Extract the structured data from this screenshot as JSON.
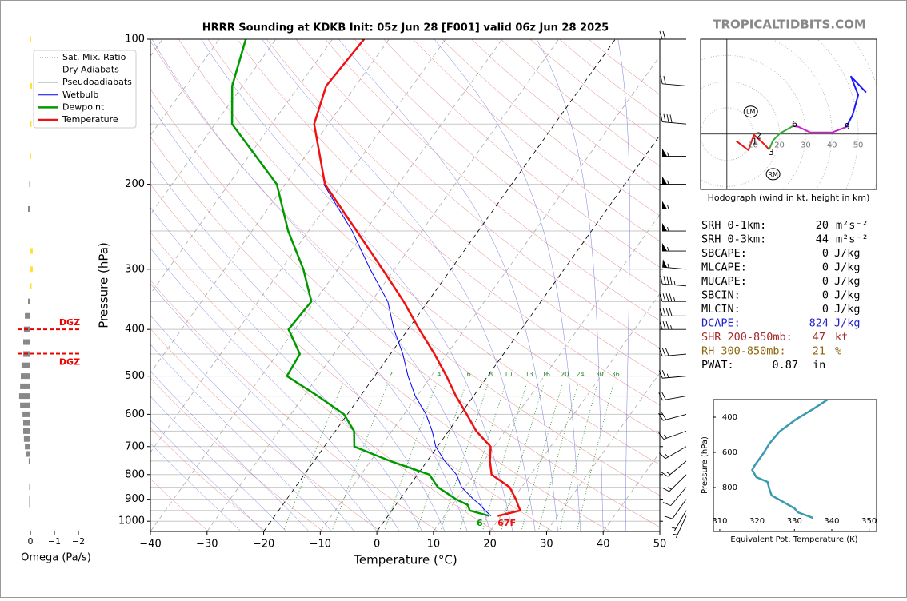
{
  "brand": "TROPICALTIDBITS.COM",
  "chart_data": [
    {
      "type": "skewt",
      "title": "HRRR Sounding at KDKB Init: 05z Jun 28 [F001] valid 06z Jun 28 2025",
      "x_label": "Temperature (°C)",
      "y_label": "Pressure (hPa)",
      "xlim": [
        -40,
        50
      ],
      "ylim": [
        1050,
        100
      ],
      "log_y": true,
      "xticks": [
        {
          "value": -40,
          "label": "−40"
        },
        {
          "value": -30,
          "label": "−30"
        },
        {
          "value": -20,
          "label": "−20"
        },
        {
          "value": -10,
          "label": "−10"
        },
        0,
        10,
        20,
        30,
        40,
        50
      ],
      "yticks": [
        100,
        200,
        300,
        400,
        500,
        600,
        700,
        800,
        900,
        1000
      ],
      "minor_yticks": [
        150,
        250,
        350,
        450,
        550,
        650,
        750,
        850,
        950,
        1050
      ],
      "highlight_isotherms": [
        -20,
        0
      ],
      "mixing_ratio_labels": [
        1,
        2,
        4,
        6,
        8,
        10,
        13,
        16,
        20,
        24,
        30,
        36
      ],
      "background_lines": [
        {
          "name": "Sat. Mix. Ratio",
          "color": "#2e8b2e",
          "style": "dotted"
        },
        {
          "name": "Dry Adiabats",
          "color": "#aaaaaa",
          "style": "solid"
        },
        {
          "name": "Pseudoadiabats",
          "color": "#aaaaaa",
          "style": "solid"
        }
      ],
      "pressure": [
        975,
        950,
        925,
        900,
        850,
        800,
        750,
        700,
        650,
        600,
        550,
        500,
        450,
        400,
        350,
        300,
        250,
        200,
        150,
        125,
        100
      ],
      "series": [
        {
          "name": "Wetbulb",
          "color": "#0000ff",
          "width": 1,
          "values": [
            18.2,
            16.5,
            14.9,
            13,
            9.4,
            6.9,
            3.1,
            -0.3,
            -2.9,
            -6.1,
            -10.3,
            -14.1,
            -17.8,
            -22.5,
            -27.1,
            -34.3,
            -42.3,
            -53.2,
            null,
            null,
            null
          ]
        },
        {
          "name": "Dewpoint",
          "color": "#009900",
          "width": 2.5,
          "values": [
            17.9,
            13.8,
            12.7,
            9.9,
            5.2,
            2.1,
            -6.5,
            -14.7,
            -16.7,
            -20.6,
            -27.5,
            -35.5,
            -36,
            -41.1,
            -40.6,
            -46.1,
            -53.6,
            -61.5,
            -77,
            -81.8,
            -85.3
          ]
        },
        {
          "name": "Temperature",
          "color": "#ee1111",
          "width": 2.5,
          "values": [
            19.4,
            22.7,
            21.6,
            20.5,
            17.9,
            13.1,
            11.1,
            9.4,
            4.9,
            1.1,
            -3.1,
            -7.3,
            -12.2,
            -18,
            -24.3,
            -32.1,
            -41.5,
            -53,
            -62.5,
            -65.2,
            -64.4
          ]
        }
      ],
      "surface_labels": [
        {
          "text": "6",
          "color": "#009900"
        },
        {
          "text": "67F",
          "color": "#ee1111"
        }
      ],
      "wind": {
        "pressure": [
          100,
          125,
          150,
          175,
          200,
          225,
          250,
          275,
          300,
          325,
          350,
          375,
          400,
          450,
          500,
          550,
          600,
          650,
          700,
          750,
          800,
          850,
          900,
          950,
          975
        ],
        "speed": [
          20,
          20,
          40,
          55,
          55,
          55,
          55,
          55,
          55,
          45,
          45,
          40,
          35,
          30,
          25,
          20,
          20,
          15,
          15,
          15,
          15,
          10,
          10,
          5,
          5
        ],
        "direction": [
          270,
          275,
          275,
          270,
          270,
          270,
          270,
          270,
          275,
          275,
          270,
          270,
          270,
          265,
          265,
          260,
          255,
          250,
          240,
          230,
          225,
          220,
          215,
          210,
          205
        ]
      }
    },
    {
      "type": "omega",
      "x_label": "Omega (Pa/s)",
      "xlim": [
        0.5,
        -2
      ],
      "ylim": [
        1050,
        100
      ],
      "xticks": [
        0,
        {
          "value": -1,
          "label": "−1"
        },
        {
          "value": -2,
          "label": "−2"
        }
      ],
      "pressure": [
        100,
        125,
        150,
        175,
        200,
        225,
        275,
        300,
        325,
        350,
        375,
        400,
        425,
        450,
        475,
        500,
        525,
        550,
        575,
        600,
        625,
        650,
        675,
        700,
        725,
        750,
        850,
        900,
        925
      ],
      "values": [
        -0.03,
        -0.07,
        -0.05,
        -0.03,
        0.05,
        0.1,
        -0.1,
        -0.1,
        -0.05,
        0.1,
        0.23,
        0.27,
        0.3,
        0.3,
        0.37,
        0.4,
        0.43,
        0.47,
        0.43,
        0.33,
        0.3,
        0.3,
        0.27,
        0.23,
        0.17,
        0.07,
        0.05,
        0.05,
        0.05
      ],
      "colors": [
        "#ffe033",
        "#ffe033",
        "#ffe033",
        "#ffe033",
        "#888888",
        "#888888",
        "#ffe033",
        "#ffe033",
        "#ffe033",
        "#888888",
        "#888888",
        "#888888",
        "#888888",
        "#888888",
        "#888888",
        "#888888",
        "#888888",
        "#888888",
        "#888888",
        "#888888",
        "#888888",
        "#888888",
        "#888888",
        "#888888",
        "#888888",
        "#888888",
        "#888888",
        "#888888",
        "#888888"
      ],
      "annotations": [
        {
          "text": "DGZ",
          "pressure": 400,
          "color": "#ee0000"
        },
        {
          "text": "DGZ",
          "pressure": 449,
          "color": "#ee0000"
        }
      ]
    },
    {
      "type": "hodograph",
      "caption": "Hodograph (wind in kt, height in km)",
      "xlim": [
        -10,
        57
      ],
      "ylim": [
        -21,
        36
      ],
      "xticks": [
        10,
        20,
        30,
        40,
        50
      ],
      "series": [
        {
          "color": "#ee1111",
          "u": [
            3.6,
            8.2,
            10.3,
            13.3,
            16.1
          ],
          "v": [
            -2.7,
            -6.1,
            -0.3,
            -3.0,
            -5.8
          ]
        },
        {
          "color": "#33aa33",
          "u": [
            16.1,
            17.6,
            20.3,
            25.2
          ],
          "v": [
            -5.8,
            -2.4,
            0.3,
            3.0
          ]
        },
        {
          "color": "#cc22cc",
          "u": [
            25.2,
            27.3,
            31.8,
            40.0,
            45.5
          ],
          "v": [
            3.0,
            2.7,
            0.6,
            0.6,
            2.7
          ]
        },
        {
          "color": "#1a1aff",
          "u": [
            45.5,
            47.9,
            50,
            47.3,
            53
          ],
          "v": [
            2.7,
            7.3,
            14.8,
            21.8,
            15.8
          ]
        }
      ],
      "height_labels": [
        {
          "text": "1",
          "u": 10.6,
          "v": -3
        },
        {
          "text": "2",
          "u": 12.1,
          "v": -0.9
        },
        {
          "text": "3",
          "u": 16.9,
          "v": -7.0
        },
        {
          "text": "6",
          "u": 25.8,
          "v": 3.6
        },
        {
          "text": "9",
          "u": 45.8,
          "v": 2.7
        }
      ],
      "storm_motion": [
        {
          "text": "LM",
          "u": 9.1,
          "v": 8.5
        },
        {
          "text": "RM",
          "u": 17.6,
          "v": -15.2
        }
      ]
    },
    {
      "type": "line",
      "x_label": "Equivalent Pot. Temperature (K)",
      "y_label": "Pressure (hPa)",
      "xlim": [
        308.3,
        352
      ],
      "ylim": [
        1050,
        300
      ],
      "xticks": [
        310,
        320,
        330,
        340,
        350
      ],
      "yticks": [
        400,
        600,
        800
      ],
      "color": "#3a9ab0",
      "y": [
        300,
        359,
        414,
        482,
        550,
        605,
        673,
        700,
        741,
        768,
        809,
        845,
        918,
        941,
        973
      ],
      "values": [
        338.9,
        334.6,
        330.3,
        326,
        323.3,
        321.7,
        319.4,
        318.7,
        319.8,
        322.8,
        323.3,
        323.9,
        330,
        330.9,
        335
      ]
    }
  ],
  "stats": {
    "rows": [
      {
        "label": "SRH 0-1km:",
        "value": 20,
        "unit": "m²s⁻²",
        "color": "#000000"
      },
      {
        "label": "SRH 0-3km:",
        "value": 44,
        "unit": "m²s⁻²",
        "color": "#000000"
      },
      {
        "label": "SBCAPE:",
        "value": 0,
        "unit": "J/kg",
        "color": "#000000"
      },
      {
        "label": "MLCAPE:",
        "value": 0,
        "unit": "J/kg",
        "color": "#000000"
      },
      {
        "label": "MUCAPE:",
        "value": 0,
        "unit": "J/kg",
        "color": "#000000"
      },
      {
        "label": "SBCIN:",
        "value": 0,
        "unit": "J/kg",
        "color": "#000000"
      },
      {
        "label": "MLCIN:",
        "value": 0,
        "unit": "J/kg",
        "color": "#000000"
      },
      {
        "label": "DCAPE:",
        "value": 824,
        "unit": "J/kg",
        "color": "#2222cc"
      },
      {
        "label": "SHR 200-850mb:",
        "value": 47,
        "unit": "kt",
        "color": "#a52a2a"
      },
      {
        "label": "RH 300-850mb:",
        "value": 21,
        "unit": "%",
        "color": "#8b6508"
      },
      {
        "label": "PWAT:",
        "value": 0.87,
        "unit": "in",
        "color": "#000000"
      }
    ]
  }
}
